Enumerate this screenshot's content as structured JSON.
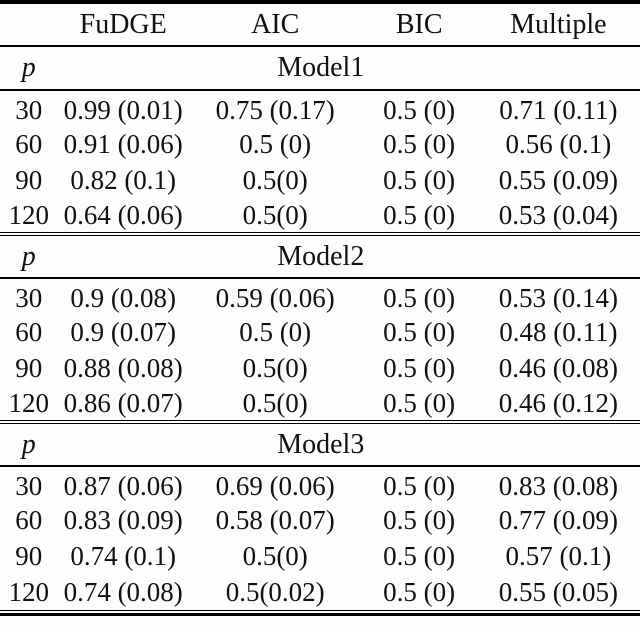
{
  "table": {
    "columns": [
      "",
      "FuDGE",
      "AIC",
      "BIC",
      "Multiple"
    ],
    "sections": [
      {
        "p_label": "p",
        "title": "Model1",
        "rows": [
          [
            "30",
            "0.99 (0.01)",
            "0.75 (0.17)",
            "0.5 (0)",
            "0.71 (0.11)"
          ],
          [
            "60",
            "0.91 (0.06)",
            "0.5 (0)",
            "0.5 (0)",
            "0.56 (0.1)"
          ],
          [
            "90",
            "0.82 (0.1)",
            "0.5(0)",
            "0.5 (0)",
            "0.55 (0.09)"
          ],
          [
            "120",
            "0.64 (0.06)",
            "0.5(0)",
            "0.5 (0)",
            "0.53 (0.04)"
          ]
        ]
      },
      {
        "p_label": "p",
        "title": "Model2",
        "rows": [
          [
            "30",
            "0.9 (0.08)",
            "0.59 (0.06)",
            "0.5 (0)",
            "0.53 (0.14)"
          ],
          [
            "60",
            "0.9 (0.07)",
            "0.5 (0)",
            "0.5 (0)",
            "0.48 (0.11)"
          ],
          [
            "90",
            "0.88 (0.08)",
            "0.5(0)",
            "0.5 (0)",
            "0.46 (0.08)"
          ],
          [
            "120",
            "0.86 (0.07)",
            "0.5(0)",
            "0.5 (0)",
            "0.46 (0.12)"
          ]
        ]
      },
      {
        "p_label": "p",
        "title": "Model3",
        "rows": [
          [
            "30",
            "0.87 (0.06)",
            "0.69 (0.06)",
            "0.5 (0)",
            "0.83 (0.08)"
          ],
          [
            "60",
            "0.83 (0.09)",
            "0.58 (0.07)",
            "0.5 (0)",
            "0.77 (0.09)"
          ],
          [
            "90",
            "0.74 (0.1)",
            "0.5(0)",
            "0.5 (0)",
            "0.57 (0.1)"
          ],
          [
            "120",
            "0.74 (0.08)",
            "0.5(0.02)",
            "0.5 (0)",
            "0.55 (0.05)"
          ]
        ]
      }
    ]
  },
  "colors": {
    "rule": "#000000",
    "text": "#111111",
    "background": "#fdfdfd"
  }
}
